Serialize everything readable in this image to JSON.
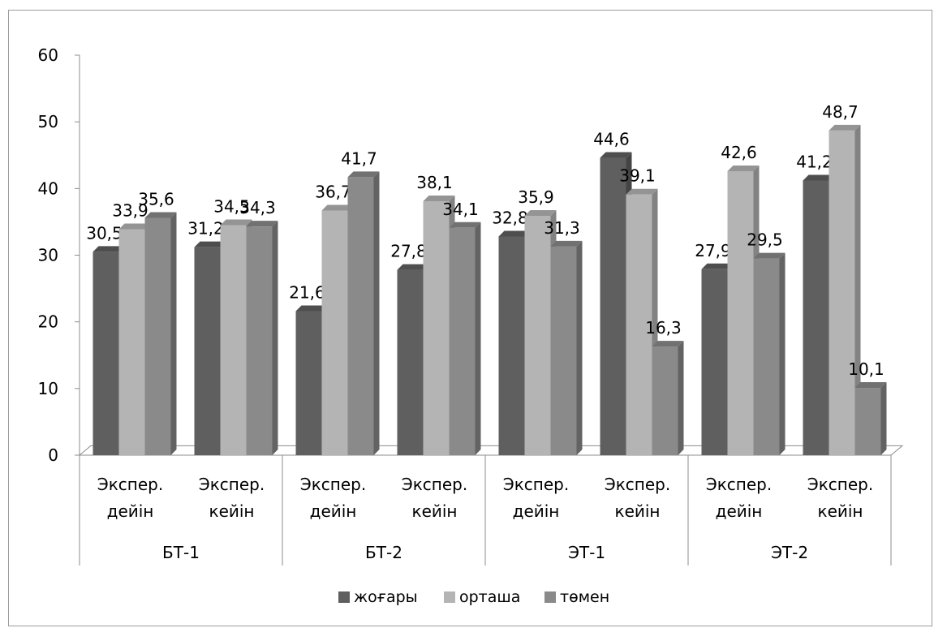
{
  "chart_data": {
    "type": "bar",
    "title": "",
    "xlabel": "",
    "ylabel": "",
    "ylim": [
      0,
      60
    ],
    "yticks": [
      0,
      10,
      20,
      30,
      40,
      50,
      60
    ],
    "grid": false,
    "legend_position": "bottom",
    "groups": [
      {
        "name": "БТ-1",
        "categories": [
          [
            "Экспер.",
            "дейін"
          ],
          [
            "Экспер.",
            "кейін"
          ]
        ]
      },
      {
        "name": "БТ-2",
        "categories": [
          [
            "Экспер.",
            "дейін"
          ],
          [
            "Экспер.",
            "кейін"
          ]
        ]
      },
      {
        "name": "ЭТ-1",
        "categories": [
          [
            "Экспер.",
            "дейін"
          ],
          [
            "Экспер.",
            "кейін"
          ]
        ]
      },
      {
        "name": "ЭТ-2",
        "categories": [
          [
            "Экспер.",
            "дейін"
          ],
          [
            "Экспер.",
            "кейін"
          ]
        ]
      }
    ],
    "series": [
      {
        "name": "жоғары",
        "color": "#5f5f5f",
        "values": [
          30.5,
          31.2,
          21.6,
          27.8,
          32.8,
          44.6,
          27.9,
          41.2
        ],
        "labels": [
          "30,5",
          "31,2",
          "21,6",
          "27,8",
          "32,8",
          "44,6",
          "27,9",
          "41,2"
        ]
      },
      {
        "name": "орташа",
        "color": "#b4b4b4",
        "values": [
          33.9,
          34.5,
          36.7,
          38.1,
          35.9,
          39.1,
          42.6,
          48.7
        ],
        "labels": [
          "33,9",
          "34,5",
          "36,7",
          "38,1",
          "35,9",
          "39,1",
          "42,6",
          "48,7"
        ]
      },
      {
        "name": "төмен",
        "color": "#8a8a8a",
        "values": [
          35.6,
          34.3,
          41.7,
          34.1,
          31.3,
          16.3,
          29.5,
          10.1
        ],
        "labels": [
          "35,6",
          "34,3",
          "41,7",
          "34,1",
          "31,3",
          "16,3",
          "29,5",
          "10,1"
        ]
      }
    ]
  }
}
